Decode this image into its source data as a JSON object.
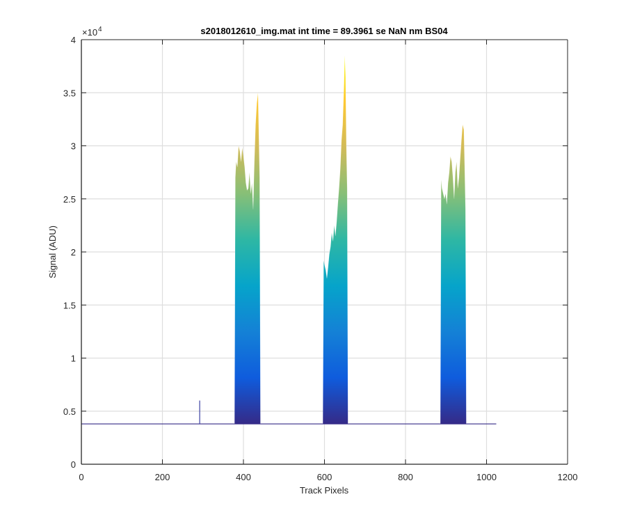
{
  "chart_data": {
    "type": "area",
    "title": "s2018012610_img.mat int time = 89.3961 se  NaN nm BS04",
    "xlabel": "Track Pixels",
    "ylabel": "Signal (ADU)",
    "xlim": [
      0,
      1200
    ],
    "ylim": [
      0,
      40000
    ],
    "x_ticks": [
      0,
      200,
      400,
      600,
      800,
      1000,
      1200
    ],
    "x_tick_labels": [
      "0",
      "200",
      "400",
      "600",
      "800",
      "1000",
      "1200"
    ],
    "y_ticks": [
      0,
      5000,
      10000,
      15000,
      20000,
      25000,
      30000,
      35000,
      40000
    ],
    "y_tick_labels": [
      "0",
      "0.5",
      "1",
      "1.5",
      "2",
      "2.5",
      "3",
      "3.5",
      "4"
    ],
    "y_exponent_label": "×10",
    "y_exponent_power": "4",
    "grid": true,
    "colormap": [
      "#352a87",
      "#0f5cdd",
      "#1481d6",
      "#06a4ca",
      "#2eb7a4",
      "#87bf77",
      "#d1bb59",
      "#fec832",
      "#f9fb0e"
    ],
    "baseline": 3800,
    "spike": {
      "x": 292,
      "value": 6000
    },
    "peaks": [
      {
        "name": "",
        "x": [
          378,
          380,
          382,
          385,
          388,
          391,
          394,
          397,
          400,
          403,
          406,
          409,
          412,
          415,
          418,
          421,
          424,
          427,
          430,
          433,
          436,
          438,
          440,
          442
        ],
        "y": [
          3800,
          27000,
          28500,
          28000,
          30000,
          29500,
          28500,
          29800,
          29000,
          28000,
          26500,
          25800,
          26000,
          27500,
          25500,
          26500,
          24000,
          28500,
          32000,
          34000,
          35000,
          31000,
          27000,
          3800
        ]
      },
      {
        "name": "",
        "x": [
          596,
          598,
          600,
          603,
          606,
          609,
          612,
          615,
          618,
          621,
          624,
          627,
          630,
          633,
          636,
          639,
          642,
          645,
          648,
          650,
          652,
          654,
          656,
          658
        ],
        "y": [
          3800,
          19200,
          18800,
          18300,
          17500,
          18600,
          19800,
          20500,
          21800,
          21000,
          22500,
          21500,
          22800,
          24500,
          26000,
          27800,
          30500,
          32000,
          35500,
          38500,
          36500,
          30000,
          26000,
          3800
        ]
      },
      {
        "name": "",
        "x": [
          886,
          888,
          890,
          893,
          896,
          899,
          902,
          905,
          908,
          911,
          914,
          917,
          920,
          923,
          926,
          929,
          932,
          935,
          938,
          941,
          944,
          946,
          948,
          950
        ],
        "y": [
          3800,
          26800,
          26000,
          25500,
          25000,
          25500,
          24500,
          26500,
          27500,
          29000,
          28500,
          27000,
          25000,
          27500,
          28500,
          26000,
          27000,
          28800,
          30500,
          32000,
          31500,
          28000,
          24000,
          3800
        ]
      }
    ],
    "xmax_data": 1024
  }
}
